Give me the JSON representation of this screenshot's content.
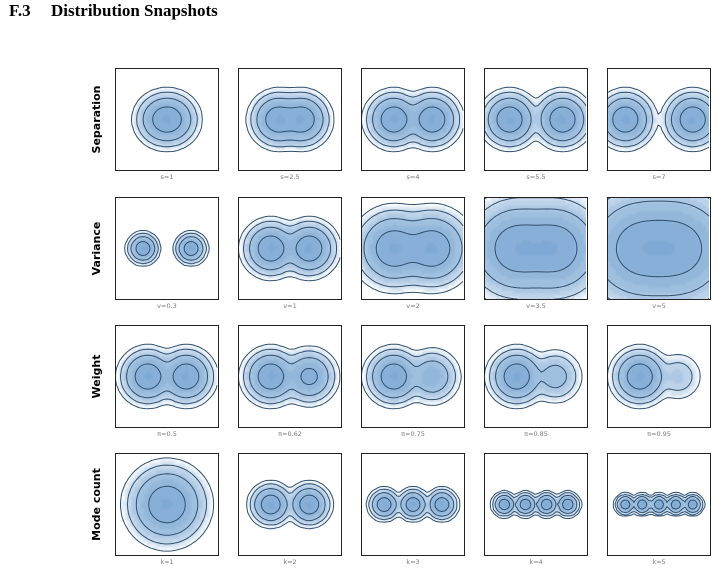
{
  "section": {
    "number": "F.3",
    "title": "Distribution Snapshots"
  },
  "colors": {
    "fill": "#3f7fbf",
    "line": "#2f4f6f",
    "frame": "#222222",
    "caption": "#777777"
  },
  "chart_data": {
    "type": "contour",
    "rows": [
      {
        "label": "Separation",
        "panels": [
          {
            "caption": "s=1",
            "modes": [
              {
                "x": -0.5,
                "y": 0,
                "w": 0.5,
                "s": 1
              },
              {
                "x": 0.5,
                "y": 0,
                "w": 0.5,
                "s": 1
              }
            ]
          },
          {
            "caption": "s=2.5",
            "modes": [
              {
                "x": -1.25,
                "y": 0,
                "w": 0.5,
                "s": 1
              },
              {
                "x": 1.25,
                "y": 0,
                "w": 0.5,
                "s": 1
              }
            ]
          },
          {
            "caption": "s=4",
            "modes": [
              {
                "x": -2,
                "y": 0,
                "w": 0.5,
                "s": 1
              },
              {
                "x": 2,
                "y": 0,
                "w": 0.5,
                "s": 1
              }
            ]
          },
          {
            "caption": "s=5.5",
            "modes": [
              {
                "x": -2.75,
                "y": 0,
                "w": 0.5,
                "s": 1
              },
              {
                "x": 2.75,
                "y": 0,
                "w": 0.5,
                "s": 1
              }
            ]
          },
          {
            "caption": "s=7",
            "modes": [
              {
                "x": -3.5,
                "y": 0,
                "w": 0.5,
                "s": 1
              },
              {
                "x": 3.5,
                "y": 0,
                "w": 0.5,
                "s": 1
              }
            ]
          }
        ]
      },
      {
        "label": "Variance",
        "panels": [
          {
            "caption": "v=0.3",
            "modes": [
              {
                "x": -2.5,
                "y": 0,
                "w": 0.5,
                "s": 0.55
              },
              {
                "x": 2.5,
                "y": 0,
                "w": 0.5,
                "s": 0.55
              }
            ]
          },
          {
            "caption": "v=1",
            "modes": [
              {
                "x": -2,
                "y": 0,
                "w": 0.5,
                "s": 1
              },
              {
                "x": 2,
                "y": 0,
                "w": 0.5,
                "s": 1
              }
            ]
          },
          {
            "caption": "v=2",
            "modes": [
              {
                "x": -2,
                "y": 0,
                "w": 0.5,
                "s": 1.41
              },
              {
                "x": 2,
                "y": 0,
                "w": 0.5,
                "s": 1.41
              }
            ]
          },
          {
            "caption": "v=3.5",
            "modes": [
              {
                "x": -2,
                "y": 0,
                "w": 0.5,
                "s": 1.87
              },
              {
                "x": 2,
                "y": 0,
                "w": 0.5,
                "s": 1.87
              }
            ]
          },
          {
            "caption": "v=5",
            "modes": [
              {
                "x": -2,
                "y": 0,
                "w": 0.5,
                "s": 2.24
              },
              {
                "x": 2,
                "y": 0,
                "w": 0.5,
                "s": 2.24
              }
            ]
          }
        ]
      },
      {
        "label": "Weight",
        "panels": [
          {
            "caption": "π=0.5",
            "modes": [
              {
                "x": -2,
                "y": 0,
                "w": 0.5,
                "s": 1
              },
              {
                "x": 2,
                "y": 0,
                "w": 0.5,
                "s": 1
              }
            ]
          },
          {
            "caption": "π=0.62",
            "modes": [
              {
                "x": -2,
                "y": 0,
                "w": 0.62,
                "s": 1
              },
              {
                "x": 2,
                "y": 0,
                "w": 0.38,
                "s": 1
              }
            ]
          },
          {
            "caption": "π=0.75",
            "modes": [
              {
                "x": -2,
                "y": 0,
                "w": 0.75,
                "s": 1
              },
              {
                "x": 2,
                "y": 0,
                "w": 0.25,
                "s": 1
              }
            ]
          },
          {
            "caption": "π=0.85",
            "modes": [
              {
                "x": -2,
                "y": 0,
                "w": 0.85,
                "s": 1
              },
              {
                "x": 2,
                "y": 0,
                "w": 0.15,
                "s": 1
              }
            ]
          },
          {
            "caption": "π=0.95",
            "modes": [
              {
                "x": -2,
                "y": 0,
                "w": 0.95,
                "s": 1
              },
              {
                "x": 2,
                "y": 0,
                "w": 0.05,
                "s": 1
              }
            ]
          }
        ]
      },
      {
        "label": "Mode count",
        "panels": [
          {
            "caption": "k=1",
            "modes": [
              {
                "x": 0,
                "y": 0,
                "w": 1,
                "s": 1.45
              }
            ]
          },
          {
            "caption": "k=2",
            "modes": [
              {
                "x": -2,
                "y": 0,
                "w": 0.5,
                "s": 0.75
              },
              {
                "x": 2,
                "y": 0,
                "w": 0.5,
                "s": 0.75
              }
            ]
          },
          {
            "caption": "k=3",
            "modes": [
              {
                "x": -3,
                "y": 0,
                "w": 0.333,
                "s": 0.55
              },
              {
                "x": 0,
                "y": 0,
                "w": 0.333,
                "s": 0.55
              },
              {
                "x": 3,
                "y": 0,
                "w": 0.333,
                "s": 0.55
              }
            ]
          },
          {
            "caption": "k=4",
            "modes": [
              {
                "x": -3.3,
                "y": 0,
                "w": 0.25,
                "s": 0.42
              },
              {
                "x": -1.1,
                "y": 0,
                "w": 0.25,
                "s": 0.42
              },
              {
                "x": 1.1,
                "y": 0,
                "w": 0.25,
                "s": 0.42
              },
              {
                "x": 3.3,
                "y": 0,
                "w": 0.25,
                "s": 0.42
              }
            ]
          },
          {
            "caption": "k=5",
            "modes": [
              {
                "x": -3.5,
                "y": 0,
                "w": 0.2,
                "s": 0.36
              },
              {
                "x": -1.75,
                "y": 0,
                "w": 0.2,
                "s": 0.36
              },
              {
                "x": 0,
                "y": 0,
                "w": 0.2,
                "s": 0.36
              },
              {
                "x": 1.75,
                "y": 0,
                "w": 0.2,
                "s": 0.36
              },
              {
                "x": 3.5,
                "y": 0,
                "w": 0.2,
                "s": 0.36
              }
            ]
          }
        ]
      }
    ]
  }
}
